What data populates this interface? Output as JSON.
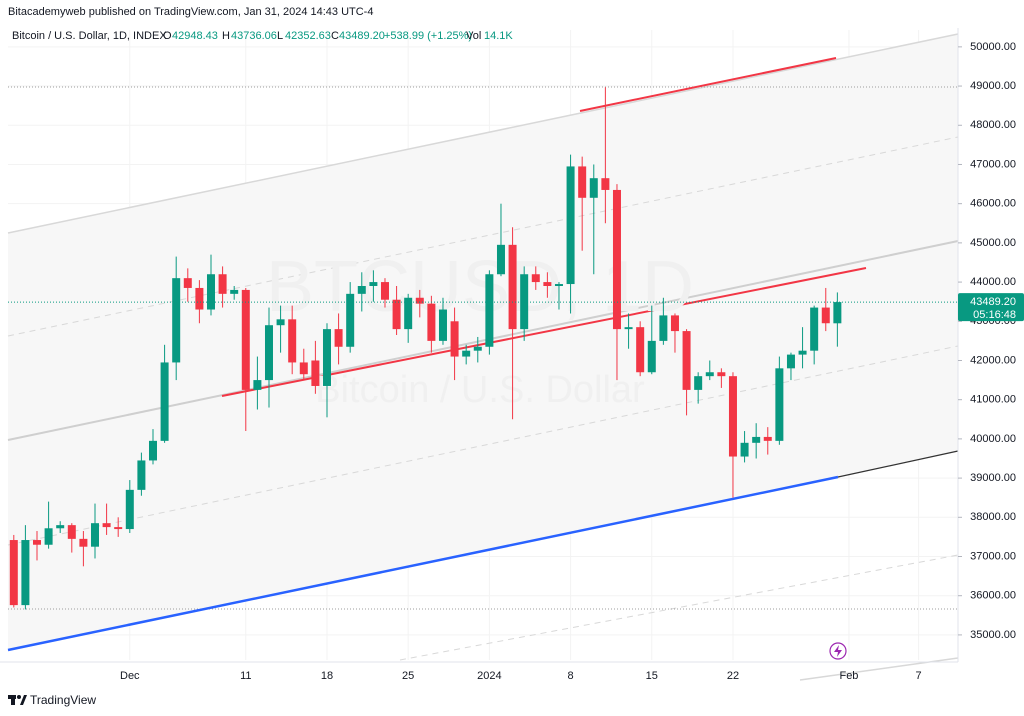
{
  "chart_data": {
    "type": "candlestick",
    "published": "Bitacademyweb published on TradingView.com, Jan 31, 2024 14:43 UTC-4",
    "symbol": "Bitcoin / U.S. Dollar, 1D, INDEX",
    "ohlc_labels": [
      "O",
      "H",
      "L",
      "C"
    ],
    "ohlc_text": [
      "42948.43",
      "43736.06",
      "42352.63",
      "43489.20"
    ],
    "change": "+538.99 (+1.25%)",
    "vol_label": "Vol",
    "vol": "14.1K",
    "watermark": "BTCUSD, 1D",
    "watermark_sub": "Bitcoin / U.S. Dollar",
    "brand": "TradingView",
    "up_color": "#089981",
    "down_color": "#f23645",
    "last_price": {
      "value": 43489.2,
      "label": "43489.20"
    },
    "countdown": "05:16:48",
    "xlim": [
      -0.5,
      81.4
    ],
    "xticks": [
      {
        "value": 10,
        "label": "Dec"
      },
      {
        "value": 20,
        "label": "11"
      },
      {
        "value": 27,
        "label": "18"
      },
      {
        "value": 34,
        "label": "25"
      },
      {
        "value": 41,
        "label": "2024"
      },
      {
        "value": 48,
        "label": "8"
      },
      {
        "value": 55,
        "label": "15"
      },
      {
        "value": 62,
        "label": "22"
      },
      {
        "value": 72,
        "label": "Feb"
      },
      {
        "value": 78,
        "label": "7"
      }
    ],
    "ylim": [
      34360,
      50430
    ],
    "yticks": [
      {
        "value": 35000,
        "label": "35000.00"
      },
      {
        "value": 36000,
        "label": "36000.00"
      },
      {
        "value": 37000,
        "label": "37000.00"
      },
      {
        "value": 38000,
        "label": "38000.00"
      },
      {
        "value": 39000,
        "label": "39000.00"
      },
      {
        "value": 40000,
        "label": "40000.00"
      },
      {
        "value": 41000,
        "label": "41000.00"
      },
      {
        "value": 42000,
        "label": "42000.00"
      },
      {
        "value": 43000,
        "label": "43000.00"
      },
      {
        "value": 44000,
        "label": "44000.00"
      },
      {
        "value": 45000,
        "label": "45000.00"
      },
      {
        "value": 46000,
        "label": "46000.00"
      },
      {
        "value": 47000,
        "label": "47000.00"
      },
      {
        "value": 48000,
        "label": "48000.00"
      },
      {
        "value": 49000,
        "label": "49000.00"
      },
      {
        "value": 50000,
        "label": "50000.00"
      }
    ],
    "ohlc": [
      [
        37420,
        37550,
        35700,
        35760
      ],
      [
        35760,
        37800,
        35650,
        37420
      ],
      [
        37420,
        37650,
        36900,
        37300
      ],
      [
        37300,
        38400,
        37200,
        37720
      ],
      [
        37720,
        37900,
        37600,
        37800
      ],
      [
        37800,
        37850,
        37100,
        37450
      ],
      [
        37450,
        37650,
        36750,
        37250
      ],
      [
        37250,
        38350,
        36950,
        37850
      ],
      [
        37850,
        38350,
        37550,
        37750
      ],
      [
        37750,
        38000,
        37500,
        37700
      ],
      [
        37700,
        38950,
        37600,
        38700
      ],
      [
        38700,
        39650,
        38550,
        39450
      ],
      [
        39450,
        40250,
        39350,
        39950
      ],
      [
        39950,
        42400,
        39900,
        41950
      ],
      [
        41950,
        44650,
        41500,
        44100
      ],
      [
        44100,
        44350,
        43500,
        43850
      ],
      [
        43850,
        44050,
        42950,
        43300
      ],
      [
        43300,
        44700,
        43150,
        44200
      ],
      [
        44200,
        44400,
        43350,
        43700
      ],
      [
        43700,
        43900,
        43550,
        43800
      ],
      [
        43800,
        43850,
        40200,
        41250
      ],
      [
        41250,
        42100,
        40750,
        41500
      ],
      [
        41500,
        43350,
        40800,
        42900
      ],
      [
        42900,
        43400,
        42200,
        43050
      ],
      [
        43050,
        43400,
        41650,
        41950
      ],
      [
        41950,
        42300,
        41500,
        41650
      ],
      [
        42000,
        42500,
        41150,
        41350
      ],
      [
        41350,
        42950,
        40550,
        42800
      ],
      [
        42800,
        43200,
        41900,
        42350
      ],
      [
        42350,
        44000,
        42200,
        43700
      ],
      [
        43700,
        44250,
        43250,
        43900
      ],
      [
        43900,
        44300,
        43500,
        44000
      ],
      [
        44000,
        44100,
        43350,
        43550
      ],
      [
        43550,
        43900,
        42650,
        42800
      ],
      [
        42800,
        43700,
        42450,
        43600
      ],
      [
        43600,
        43800,
        43100,
        43450
      ],
      [
        43450,
        43650,
        42200,
        42500
      ],
      [
        42500,
        43600,
        42400,
        43300
      ],
      [
        43000,
        43350,
        41500,
        42100
      ],
      [
        42100,
        42400,
        41900,
        42250
      ],
      [
        42250,
        42600,
        41950,
        42350
      ],
      [
        42350,
        44300,
        42150,
        44200
      ],
      [
        44200,
        46000,
        44150,
        44950
      ],
      [
        44950,
        45400,
        40500,
        42800
      ],
      [
        42800,
        44400,
        42500,
        44200
      ],
      [
        44200,
        44400,
        43800,
        44000
      ],
      [
        44000,
        44250,
        43600,
        43900
      ],
      [
        43900,
        44000,
        43300,
        43950
      ],
      [
        43950,
        47250,
        43200,
        46950
      ],
      [
        46950,
        47200,
        44800,
        46150
      ],
      [
        46150,
        47000,
        44200,
        46650
      ],
      [
        46650,
        48970,
        45500,
        46350
      ],
      [
        46350,
        46500,
        41500,
        42800
      ],
      [
        42800,
        43200,
        42300,
        42850
      ],
      [
        42850,
        43000,
        41600,
        41700
      ],
      [
        41700,
        43400,
        41650,
        42500
      ],
      [
        42500,
        43600,
        42400,
        43150
      ],
      [
        43150,
        43200,
        42200,
        42750
      ],
      [
        42750,
        42800,
        40600,
        41250
      ],
      [
        41250,
        41700,
        40900,
        41600
      ],
      [
        41600,
        42000,
        41500,
        41700
      ],
      [
        41700,
        41800,
        41300,
        41600
      ],
      [
        41600,
        41700,
        38500,
        39550
      ],
      [
        39550,
        40200,
        39400,
        39900
      ],
      [
        39900,
        40400,
        39500,
        40050
      ],
      [
        40050,
        40300,
        39600,
        39950
      ],
      [
        39950,
        42100,
        39850,
        41800
      ],
      [
        41800,
        42200,
        41500,
        42150
      ],
      [
        42150,
        42850,
        41800,
        42250
      ],
      [
        42250,
        43400,
        41900,
        43350
      ],
      [
        43350,
        43850,
        42750,
        42950
      ],
      [
        42948.43,
        43736.06,
        42352.63,
        43489.2
      ]
    ]
  }
}
